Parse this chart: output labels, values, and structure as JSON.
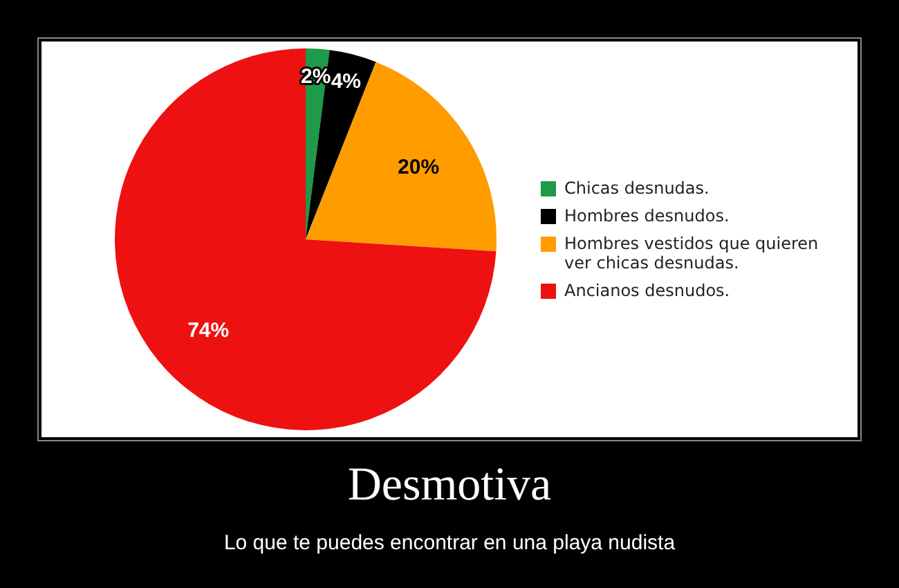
{
  "chart_data": {
    "type": "pie",
    "title": "Desmotiva",
    "subtitle": "Lo que te puedes encontrar en una playa nudista",
    "categories": [
      "Chicas desnudas.",
      "Hombres desnudos.",
      "Hombres vestidos que quieren ver chicas desnudas.",
      "Ancianos desnudos."
    ],
    "values": [
      2,
      4,
      20,
      74
    ],
    "colors": [
      "#1e9a48",
      "#000000",
      "#ff9c00",
      "#ee1111"
    ],
    "value_labels": [
      "2%",
      "4%",
      "20%",
      "74%"
    ],
    "legend": "right"
  }
}
